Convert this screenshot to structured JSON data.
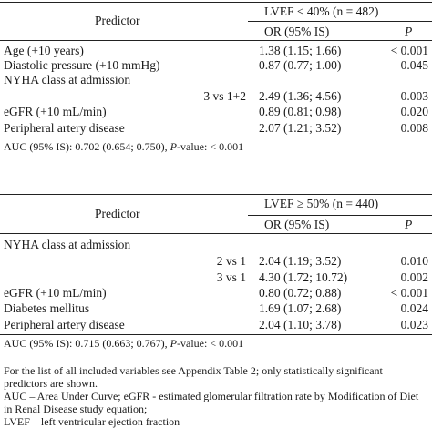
{
  "table1": {
    "predictor_header": "Predictor",
    "group_header": "LVEF < 40% (n = 482)",
    "or_header": "OR (95% IS)",
    "p_header": "P",
    "rows": [
      {
        "label": "Age (+10 years)",
        "or": "1.38 (1.15; 1.66)",
        "p": "< 0.001"
      },
      {
        "label": "Diastolic pressure (+10 mmHg)",
        "or": "0.87 (0.77; 1.00)",
        "p": "0.045"
      },
      {
        "label": "NYHA class at admission",
        "or": "",
        "p": ""
      },
      {
        "label": "3 vs 1+2",
        "or": "2.49 (1.36; 4.56)",
        "p": "0.003"
      },
      {
        "label": "eGFR (+10 mL/min)",
        "or": "0.89 (0.81; 0.98)",
        "p": "0.020"
      },
      {
        "label": "Peripheral artery disease",
        "or": "2.07 (1.21; 3.52)",
        "p": "0.008"
      }
    ],
    "auc": {
      "prefix": "AUC (95% IS): 0.702 (0.654; 0.750), ",
      "p_italic": "P",
      "suffix": "-value: < 0.001"
    }
  },
  "table2": {
    "predictor_header": "Predictor",
    "group_header": "LVEF ≥ 50% (n = 440)",
    "or_header": "OR (95% IS)",
    "p_header": "P",
    "rows": [
      {
        "label": "NYHA class at admission",
        "or": "",
        "p": ""
      },
      {
        "label": "2 vs 1",
        "or": "2.04 (1.19; 3.52)",
        "p": "0.010"
      },
      {
        "label": "3 vs 1",
        "or": "4.30 (1.72; 10.72)",
        "p": "0.002"
      },
      {
        "label": "eGFR (+10 mL/min)",
        "or": "0.80 (0.72; 0.88)",
        "p": "< 0.001"
      },
      {
        "label": "Diabetes mellitus",
        "or": "1.69 (1.07; 2.68)",
        "p": "0.024"
      },
      {
        "label": "Peripheral artery disease",
        "or": "2.04 (1.10; 3.78)",
        "p": "0.023"
      }
    ],
    "auc": {
      "prefix": "AUC (95% IS): 0.715 (0.663; 0.767), ",
      "p_italic": "P",
      "suffix": "-value: < 0.001"
    }
  },
  "notes": {
    "line1": "For the list of all included variables see Appendix Table 2; only statistically significant predictors are shown.",
    "line2": "AUC – Area Under Curve; eGFR - estimated glomerular filtration rate by Modification of Diet in Renal Disease study equation;",
    "line3": "LVEF – left ventricular ejection fraction"
  }
}
